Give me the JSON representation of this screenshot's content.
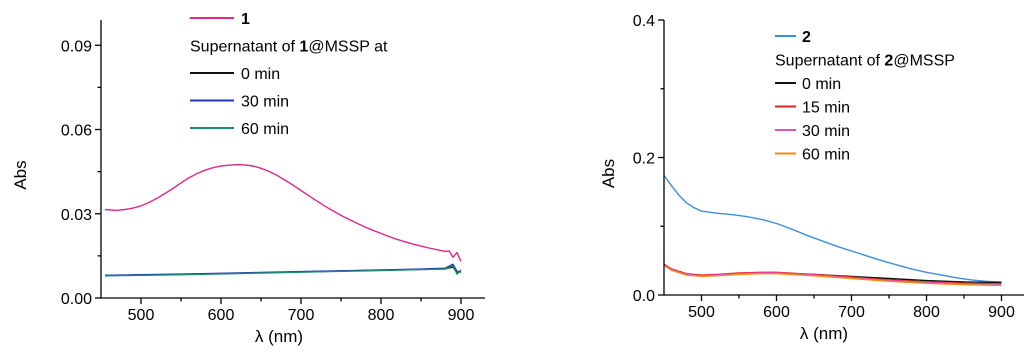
{
  "chart_data": [
    {
      "type": "line",
      "id": "1",
      "xlabel": "λ (nm)",
      "ylabel": "Abs",
      "xlim": [
        450,
        930
      ],
      "ylim": [
        0.0,
        0.099
      ],
      "xticks": [
        500,
        600,
        700,
        800,
        900
      ],
      "yticks": [
        0.0,
        0.03,
        0.06,
        0.09
      ],
      "xtick_labels": [
        "500",
        "600",
        "700",
        "800",
        "900"
      ],
      "ytick_labels": [
        "0.00",
        "0.03",
        "0.06",
        "0.09"
      ],
      "legend": {
        "placement": "top-center",
        "main_label": "1",
        "subtitle_pre": "Supernatant of ",
        "subtitle_bold": "1",
        "subtitle_post": "@MSSP at"
      },
      "series": [
        {
          "name": "1",
          "color": "#e0288c",
          "x": [
            455,
            470,
            480,
            490,
            500,
            510,
            520,
            530,
            540,
            550,
            560,
            570,
            580,
            590,
            600,
            610,
            620,
            630,
            640,
            650,
            660,
            670,
            680,
            690,
            700,
            710,
            720,
            730,
            740,
            750,
            760,
            770,
            780,
            790,
            800,
            810,
            820,
            830,
            840,
            850,
            860,
            870,
            880,
            885,
            890,
            895,
            900
          ],
          "y": [
            0.0315,
            0.0312,
            0.0315,
            0.032,
            0.0328,
            0.034,
            0.0355,
            0.0372,
            0.039,
            0.041,
            0.0428,
            0.0443,
            0.0455,
            0.0464,
            0.047,
            0.0473,
            0.0475,
            0.0474,
            0.047,
            0.0462,
            0.0451,
            0.0437,
            0.042,
            0.0402,
            0.0383,
            0.0364,
            0.0345,
            0.0327,
            0.031,
            0.0294,
            0.028,
            0.0266,
            0.0253,
            0.0241,
            0.023,
            0.0219,
            0.0209,
            0.02,
            0.0192,
            0.0185,
            0.0178,
            0.0172,
            0.0166,
            0.0168,
            0.0145,
            0.0162,
            0.013
          ]
        },
        {
          "name": "0 min",
          "color": "#111111",
          "x": [
            455,
            500,
            550,
            600,
            650,
            700,
            750,
            800,
            850,
            880,
            890,
            895,
            900
          ],
          "y": [
            0.008,
            0.0082,
            0.0084,
            0.0087,
            0.009,
            0.0093,
            0.0096,
            0.0099,
            0.0102,
            0.0104,
            0.011,
            0.009,
            0.0095
          ]
        },
        {
          "name": "30 min",
          "color": "#2233bb",
          "x": [
            455,
            500,
            550,
            600,
            650,
            700,
            750,
            800,
            850,
            880,
            890,
            895,
            900
          ],
          "y": [
            0.0081,
            0.0083,
            0.0085,
            0.0088,
            0.0091,
            0.0094,
            0.0097,
            0.01,
            0.0103,
            0.0106,
            0.012,
            0.0095,
            0.0092
          ]
        },
        {
          "name": "60 min",
          "color": "#1b8a76",
          "x": [
            455,
            500,
            550,
            600,
            650,
            700,
            750,
            800,
            850,
            880,
            890,
            895,
            900
          ],
          "y": [
            0.0079,
            0.0081,
            0.0083,
            0.0086,
            0.0089,
            0.0092,
            0.0095,
            0.0098,
            0.0101,
            0.0103,
            0.0115,
            0.0085,
            0.01
          ]
        }
      ]
    },
    {
      "type": "line",
      "id": "2",
      "xlabel": "λ (nm)",
      "ylabel": "Abs",
      "xlim": [
        450,
        930
      ],
      "ylim": [
        0.0,
        0.4
      ],
      "xticks": [
        500,
        600,
        700,
        800,
        900
      ],
      "yticks": [
        0.0,
        0.2,
        0.4
      ],
      "xtick_labels": [
        "500",
        "600",
        "700",
        "800",
        "900"
      ],
      "ytick_labels": [
        "0.0",
        "0.2",
        "0.4"
      ],
      "legend": {
        "placement": "top-right",
        "main_label": "2",
        "subtitle_pre": "Supernatant of ",
        "subtitle_bold": "2",
        "subtitle_post": "@MSSP"
      },
      "series": [
        {
          "name": "2",
          "color": "#3a8fe0",
          "x": [
            450,
            460,
            470,
            480,
            490,
            500,
            520,
            540,
            560,
            580,
            600,
            620,
            640,
            660,
            680,
            700,
            720,
            740,
            760,
            780,
            800,
            820,
            840,
            860,
            880,
            900
          ],
          "y": [
            0.174,
            0.159,
            0.145,
            0.134,
            0.127,
            0.122,
            0.119,
            0.117,
            0.114,
            0.11,
            0.104,
            0.096,
            0.087,
            0.079,
            0.071,
            0.064,
            0.057,
            0.05,
            0.044,
            0.038,
            0.033,
            0.029,
            0.025,
            0.022,
            0.02,
            0.019
          ]
        },
        {
          "name": "0 min",
          "color": "#111111",
          "x": [
            450,
            460,
            480,
            500,
            520,
            550,
            580,
            600,
            650,
            700,
            750,
            800,
            850,
            900
          ],
          "y": [
            0.044,
            0.037,
            0.03,
            0.028,
            0.029,
            0.031,
            0.032,
            0.032,
            0.03,
            0.027,
            0.024,
            0.021,
            0.019,
            0.018
          ]
        },
        {
          "name": "15 min",
          "color": "#dd2a1e",
          "x": [
            450,
            460,
            480,
            500,
            520,
            550,
            580,
            600,
            650,
            700,
            750,
            800,
            850,
            900
          ],
          "y": [
            0.045,
            0.038,
            0.031,
            0.029,
            0.03,
            0.032,
            0.033,
            0.033,
            0.03,
            0.026,
            0.022,
            0.019,
            0.017,
            0.016
          ]
        },
        {
          "name": "30 min",
          "color": "#dd55bb",
          "x": [
            450,
            460,
            480,
            500,
            520,
            550,
            580,
            600,
            650,
            700,
            750,
            800,
            850,
            900
          ],
          "y": [
            0.044,
            0.037,
            0.03,
            0.028,
            0.029,
            0.031,
            0.032,
            0.032,
            0.029,
            0.025,
            0.021,
            0.018,
            0.016,
            0.015
          ]
        },
        {
          "name": "60 min",
          "color": "#f08a1c",
          "x": [
            450,
            460,
            480,
            500,
            520,
            550,
            580,
            600,
            650,
            700,
            750,
            800,
            850,
            900
          ],
          "y": [
            0.043,
            0.036,
            0.029,
            0.027,
            0.028,
            0.03,
            0.031,
            0.031,
            0.028,
            0.024,
            0.02,
            0.017,
            0.015,
            0.014
          ]
        }
      ]
    }
  ]
}
